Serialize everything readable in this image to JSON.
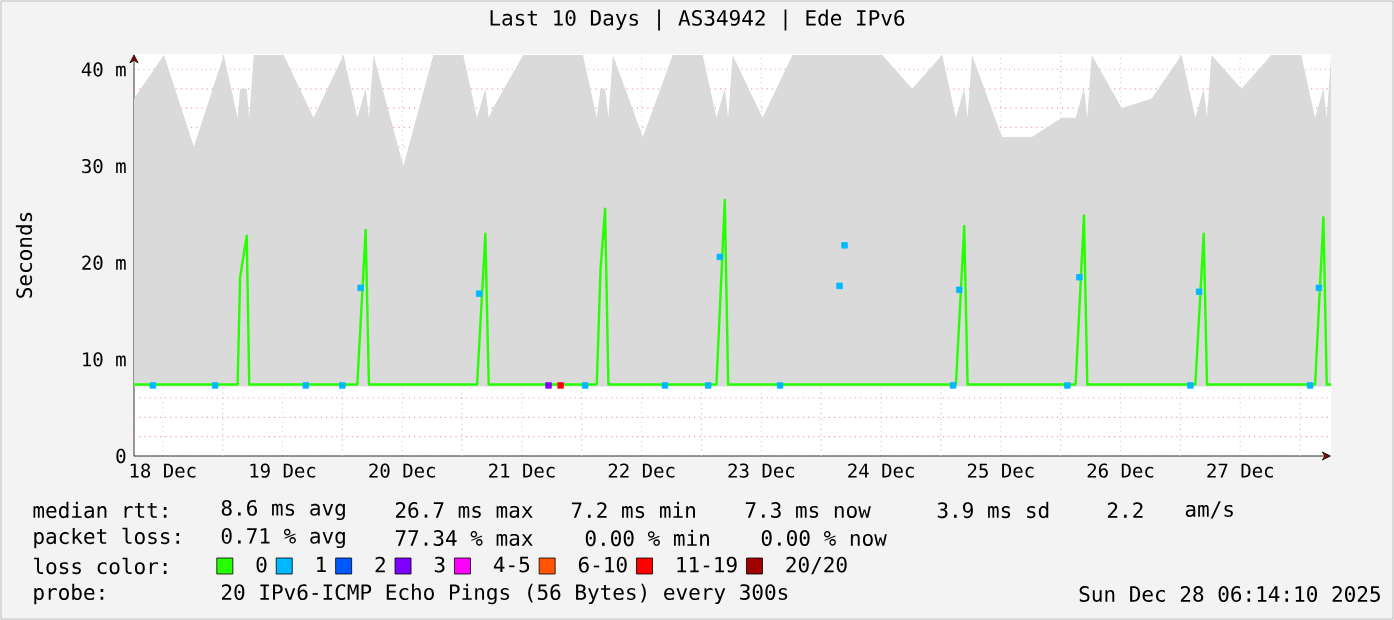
{
  "chart_data": {
    "type": "line",
    "title": "Last 10 Days | AS34942 | Ede IPv6",
    "ylabel": "Seconds",
    "legend_title": "loss color:",
    "legend": "bottom",
    "grid": true,
    "xlim": [
      "2025-12-18T06:14",
      "2025-12-28T06:14"
    ],
    "xticks": [
      {
        "value": "2025-12-18T12:00",
        "label": "18 Dec"
      },
      {
        "value": "2025-12-19T12:00",
        "label": "19 Dec"
      },
      {
        "value": "2025-12-20T12:00",
        "label": "20 Dec"
      },
      {
        "value": "2025-12-21T12:00",
        "label": "21 Dec"
      },
      {
        "value": "2025-12-22T12:00",
        "label": "22 Dec"
      },
      {
        "value": "2025-12-23T12:00",
        "label": "23 Dec"
      },
      {
        "value": "2025-12-24T12:00",
        "label": "24 Dec"
      },
      {
        "value": "2025-12-25T12:00",
        "label": "25 Dec"
      },
      {
        "value": "2025-12-26T12:00",
        "label": "26 Dec"
      },
      {
        "value": "2025-12-27T12:00",
        "label": "27 Dec"
      },
      {
        "value": "2025-12-19T00:00",
        "label": null
      },
      {
        "value": "2025-12-20T00:00",
        "label": null
      },
      {
        "value": "2025-12-21T00:00",
        "label": null
      },
      {
        "value": "2025-12-22T00:00",
        "label": null
      },
      {
        "value": "2025-12-23T00:00",
        "label": null
      },
      {
        "value": "2025-12-24T00:00",
        "label": null
      },
      {
        "value": "2025-12-25T00:00",
        "label": null
      },
      {
        "value": "2025-12-26T00:00",
        "label": null
      },
      {
        "value": "2025-12-27T00:00",
        "label": null
      },
      {
        "value": "2025-12-28T00:00",
        "label": null
      }
    ],
    "ylim": [
      0,
      41.6
    ],
    "yticks": [
      0,
      {
        "value": 10,
        "label": "10 m"
      },
      {
        "value": 20,
        "label": "20 m"
      },
      {
        "value": 30,
        "label": "30 m"
      },
      {
        "value": 40,
        "label": "40 m"
      },
      {
        "value": 2,
        "label": null
      },
      {
        "value": 4,
        "label": null
      },
      {
        "value": 6,
        "label": null
      },
      {
        "value": 8,
        "label": null
      },
      {
        "value": 12,
        "label": null
      },
      {
        "value": 14,
        "label": null
      },
      {
        "value": 16,
        "label": null
      },
      {
        "value": 18,
        "label": null
      },
      {
        "value": 22,
        "label": null
      },
      {
        "value": 24,
        "label": null
      },
      {
        "value": 26,
        "label": null
      },
      {
        "value": 28,
        "label": null
      },
      {
        "value": 32,
        "label": null
      },
      {
        "value": 34,
        "label": null
      },
      {
        "value": 36,
        "label": null
      },
      {
        "value": 38,
        "label": null
      }
    ],
    "series": [
      {
        "name": "0",
        "color": "#26ff00",
        "marker": "none",
        "x": [
          "2025-12-18T06:14",
          "2025-12-18T12:14",
          "2025-12-18T18:14",
          "2025-12-19T00:14",
          "2025-12-19T03:00",
          "2025-12-19T03:30",
          "2025-12-19T04:50",
          "2025-12-19T05:20",
          "2025-12-19T06:14",
          "2025-12-19T12:14",
          "2025-12-19T18:14",
          "2025-12-20T00:14",
          "2025-12-20T03:00",
          "2025-12-20T04:40",
          "2025-12-20T05:20",
          "2025-12-20T06:14",
          "2025-12-20T12:14",
          "2025-12-20T18:14",
          "2025-12-21T00:14",
          "2025-12-21T03:00",
          "2025-12-21T04:40",
          "2025-12-21T05:20",
          "2025-12-21T06:14",
          "2025-12-21T12:14",
          "2025-12-21T18:14",
          "2025-12-22T00:14",
          "2025-12-22T03:00",
          "2025-12-22T03:45",
          "2025-12-22T04:40",
          "2025-12-22T05:20",
          "2025-12-22T06:14",
          "2025-12-22T12:14",
          "2025-12-22T18:14",
          "2025-12-23T00:14",
          "2025-12-23T03:00",
          "2025-12-23T04:40",
          "2025-12-23T05:20",
          "2025-12-23T06:14",
          "2025-12-23T12:14",
          "2025-12-23T18:14",
          "2025-12-24T00:14",
          "2025-12-24T06:14",
          "2025-12-24T12:14",
          "2025-12-24T18:14",
          "2025-12-25T00:14",
          "2025-12-25T03:00",
          "2025-12-25T04:40",
          "2025-12-25T05:20",
          "2025-12-25T06:14",
          "2025-12-25T12:14",
          "2025-12-25T18:14",
          "2025-12-26T00:14",
          "2025-12-26T03:00",
          "2025-12-26T04:40",
          "2025-12-26T05:20",
          "2025-12-26T06:14",
          "2025-12-26T12:14",
          "2025-12-26T18:14",
          "2025-12-27T00:14",
          "2025-12-27T03:00",
          "2025-12-27T04:40",
          "2025-12-27T05:20",
          "2025-12-27T06:14",
          "2025-12-27T12:14",
          "2025-12-27T18:14",
          "2025-12-28T00:14",
          "2025-12-28T03:00",
          "2025-12-28T04:40",
          "2025-12-28T05:20",
          "2025-12-28T06:14"
        ],
        "values": [
          7.4,
          7.4,
          7.4,
          7.4,
          7.4,
          18.5,
          22.8,
          7.4,
          7.4,
          7.4,
          7.4,
          7.4,
          7.4,
          23.4,
          7.4,
          7.4,
          7.4,
          7.4,
          7.4,
          7.4,
          23.0,
          7.4,
          7.4,
          7.4,
          7.4,
          7.4,
          7.4,
          19.3,
          25.6,
          7.4,
          7.4,
          7.4,
          7.4,
          7.4,
          7.4,
          26.5,
          7.4,
          7.4,
          7.4,
          7.4,
          7.4,
          7.4,
          7.4,
          7.4,
          7.4,
          7.4,
          23.8,
          7.4,
          7.4,
          7.4,
          7.4,
          7.4,
          7.4,
          24.9,
          7.4,
          7.4,
          7.4,
          7.4,
          7.4,
          7.4,
          23.0,
          7.4,
          7.4,
          7.4,
          7.4,
          7.4,
          7.4,
          24.7,
          7.4,
          7.4
        ],
        "lower": [
          7.2,
          7.2,
          7.2,
          7.2,
          7.2,
          7.2,
          7.2,
          7.2,
          7.2,
          7.2,
          7.2,
          7.2,
          7.2,
          7.2,
          7.2,
          7.2,
          7.2,
          7.2,
          7.2,
          7.2,
          7.2,
          7.2,
          7.2,
          7.2,
          7.2,
          7.2,
          7.2,
          7.2,
          7.2,
          7.2,
          7.2,
          7.2,
          7.2,
          7.2,
          7.2,
          7.2,
          7.2,
          7.2,
          7.2,
          7.2,
          7.2,
          7.2,
          7.2,
          7.2,
          7.2,
          7.2,
          7.2,
          7.2,
          7.2,
          7.2,
          7.2,
          7.2,
          7.2,
          7.2,
          7.2,
          7.2,
          7.2,
          7.2,
          7.2,
          7.2,
          7.2,
          7.2,
          7.2,
          7.2,
          7.2,
          7.2,
          7.2,
          7.2,
          7.2,
          7.2
        ],
        "upper": [
          37,
          41.5,
          32,
          41.5,
          35,
          38,
          38,
          35,
          41.5,
          41.5,
          35,
          41.5,
          35,
          38,
          35,
          41.5,
          30,
          41.5,
          41.5,
          35,
          38,
          35,
          36,
          41.5,
          41.5,
          41.5,
          35,
          38,
          38,
          35,
          41.5,
          33,
          41.5,
          41.5,
          35,
          38,
          35,
          41.5,
          35,
          41.5,
          41.5,
          41.5,
          41.5,
          38,
          41.5,
          35,
          38,
          35,
          41.5,
          33,
          33,
          35,
          35,
          38,
          35,
          41.5,
          36,
          37,
          41.5,
          35,
          38,
          35,
          41.5,
          38,
          41.5,
          41.5,
          35,
          38,
          35,
          41.5
        ]
      },
      {
        "name": "1",
        "color": "#00b8ff",
        "type": "scatter",
        "marker": "square",
        "x": [
          "2025-12-18T10:00",
          "2025-12-18T22:30",
          "2025-12-19T16:40",
          "2025-12-20T00:00",
          "2025-12-20T03:40",
          "2025-12-21T03:25",
          "2025-12-22T00:40",
          "2025-12-22T16:40",
          "2025-12-23T01:20",
          "2025-12-23T03:40",
          "2025-12-23T15:45",
          "2025-12-24T03:40",
          "2025-12-24T04:40",
          "2025-12-25T02:25",
          "2025-12-25T03:40",
          "2025-12-26T01:20",
          "2025-12-26T03:45",
          "2025-12-27T02:00",
          "2025-12-27T03:45",
          "2025-12-28T02:00",
          "2025-12-28T03:45"
        ],
        "values": [
          7.3,
          7.3,
          7.3,
          7.3,
          17.4,
          16.8,
          7.3,
          7.3,
          7.3,
          20.6,
          7.3,
          17.6,
          21.8,
          7.3,
          17.2,
          7.3,
          18.5,
          7.3,
          17.0,
          7.3,
          17.4
        ]
      },
      {
        "name": "2",
        "color": "#0059ff",
        "type": "scatter",
        "marker": "square"
      },
      {
        "name": "3",
        "color": "#7e00ff",
        "type": "scatter",
        "marker": "square",
        "x": [
          "2025-12-21T17:20"
        ],
        "values": [
          7.3
        ]
      },
      {
        "name": "4-5",
        "color": "#ff00ff",
        "type": "scatter",
        "marker": "square"
      },
      {
        "name": "6-10",
        "color": "#ff5500",
        "type": "scatter",
        "marker": "square"
      },
      {
        "name": "11-19",
        "color": "#ff0000",
        "type": "scatter",
        "marker": "square",
        "x": [
          "2025-12-21T19:45"
        ],
        "values": [
          7.3
        ]
      },
      {
        "name": "20/20",
        "color": "#a10000",
        "type": "scatter",
        "marker": "square"
      }
    ],
    "annotations": [
      "median rtt:",
      "8.6 ms avg",
      "26.7 ms max",
      "7.2 ms min",
      "7.3 ms now",
      "3.9 ms sd",
      "2.2",
      "am/s",
      "packet loss:",
      "0.71 % avg",
      "77.34 % max",
      "0.00 % min",
      "0.00 % now",
      "probe:",
      "20 IPv6-ICMP Echo Pings (56 Bytes) every 300s",
      "Sun Dec 28 06:14:10 2025"
    ]
  }
}
